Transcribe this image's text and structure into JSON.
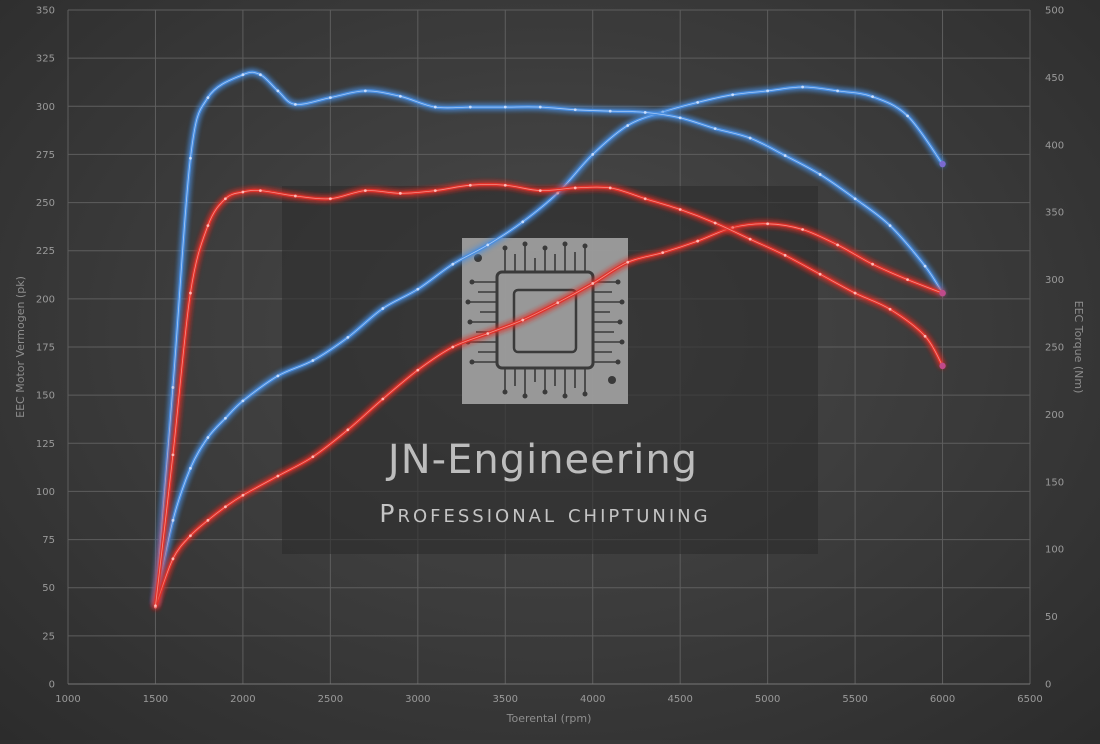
{
  "chart_data": {
    "type": "line",
    "xlabel": "Toerental (rpm)",
    "ylabel_left": "EEC Motor Vermogen (pk)",
    "ylabel_right": "EEC Torque (Nm)",
    "xlim": [
      1000,
      6500
    ],
    "ylim_left": [
      0,
      350
    ],
    "ylim_right": [
      0,
      500
    ],
    "x_ticks": [
      1000,
      1500,
      2000,
      2500,
      3000,
      3500,
      4000,
      4500,
      5000,
      5500,
      6000,
      6500
    ],
    "y_left_ticks": [
      0,
      25,
      50,
      75,
      100,
      125,
      150,
      175,
      200,
      225,
      250,
      275,
      300,
      325,
      350
    ],
    "y_right_ticks": [
      0,
      50,
      100,
      150,
      200,
      250,
      300,
      350,
      400,
      450,
      500
    ],
    "grid": true,
    "legend": "none",
    "series": [
      {
        "axis": "left",
        "color": "#4a8ee0",
        "x": [
          1500,
          1600,
          1700,
          1800,
          1900,
          2000,
          2200,
          2400,
          2600,
          2800,
          3000,
          3200,
          3400,
          3600,
          3800,
          4000,
          4200,
          4400,
          4600,
          4800,
          5000,
          5200,
          5400,
          5600,
          5800,
          6000
        ],
        "y": [
          42,
          85,
          112,
          128,
          138,
          147,
          160,
          168,
          180,
          195,
          205,
          218,
          228,
          240,
          255,
          275,
          290,
          297,
          302,
          306,
          308,
          310,
          308,
          305,
          295,
          270
        ]
      },
      {
        "axis": "right",
        "color": "#4a8ee0",
        "x": [
          1500,
          1600,
          1700,
          1800,
          2000,
          2100,
          2200,
          2300,
          2500,
          2700,
          2900,
          3100,
          3300,
          3500,
          3700,
          3900,
          4100,
          4300,
          4500,
          4700,
          4900,
          5100,
          5300,
          5500,
          5700,
          5900,
          6000
        ],
        "y": [
          60,
          220,
          390,
          435,
          452,
          452,
          440,
          430,
          435,
          440,
          436,
          428,
          428,
          428,
          428,
          426,
          425,
          424,
          420,
          412,
          405,
          392,
          378,
          360,
          340,
          310,
          290
        ]
      },
      {
        "axis": "left",
        "color": "#e0322c",
        "x": [
          1500,
          1600,
          1700,
          1800,
          1900,
          2000,
          2200,
          2400,
          2600,
          2800,
          3000,
          3200,
          3400,
          3600,
          3800,
          4000,
          4200,
          4400,
          4600,
          4800,
          5000,
          5200,
          5400,
          5600,
          5800,
          6000
        ],
        "y": [
          40,
          65,
          77,
          85,
          92,
          98,
          108,
          118,
          132,
          148,
          163,
          175,
          182,
          189,
          198,
          208,
          219,
          224,
          230,
          237,
          239,
          236,
          228,
          218,
          210,
          203
        ]
      },
      {
        "axis": "right",
        "color": "#e0322c",
        "x": [
          1500,
          1600,
          1700,
          1800,
          1900,
          2000,
          2100,
          2300,
          2500,
          2700,
          2900,
          3100,
          3300,
          3500,
          3700,
          3900,
          4100,
          4300,
          4500,
          4700,
          4900,
          5100,
          5300,
          5500,
          5700,
          5900,
          6000
        ],
        "y": [
          58,
          170,
          290,
          340,
          360,
          365,
          366,
          362,
          360,
          366,
          364,
          366,
          370,
          370,
          366,
          368,
          368,
          360,
          352,
          342,
          330,
          318,
          304,
          290,
          278,
          258,
          236
        ]
      }
    ]
  },
  "watermark": {
    "title": "JN-Engineering",
    "subtitle": "Professional chiptuning",
    "icon": "chip-icon"
  }
}
